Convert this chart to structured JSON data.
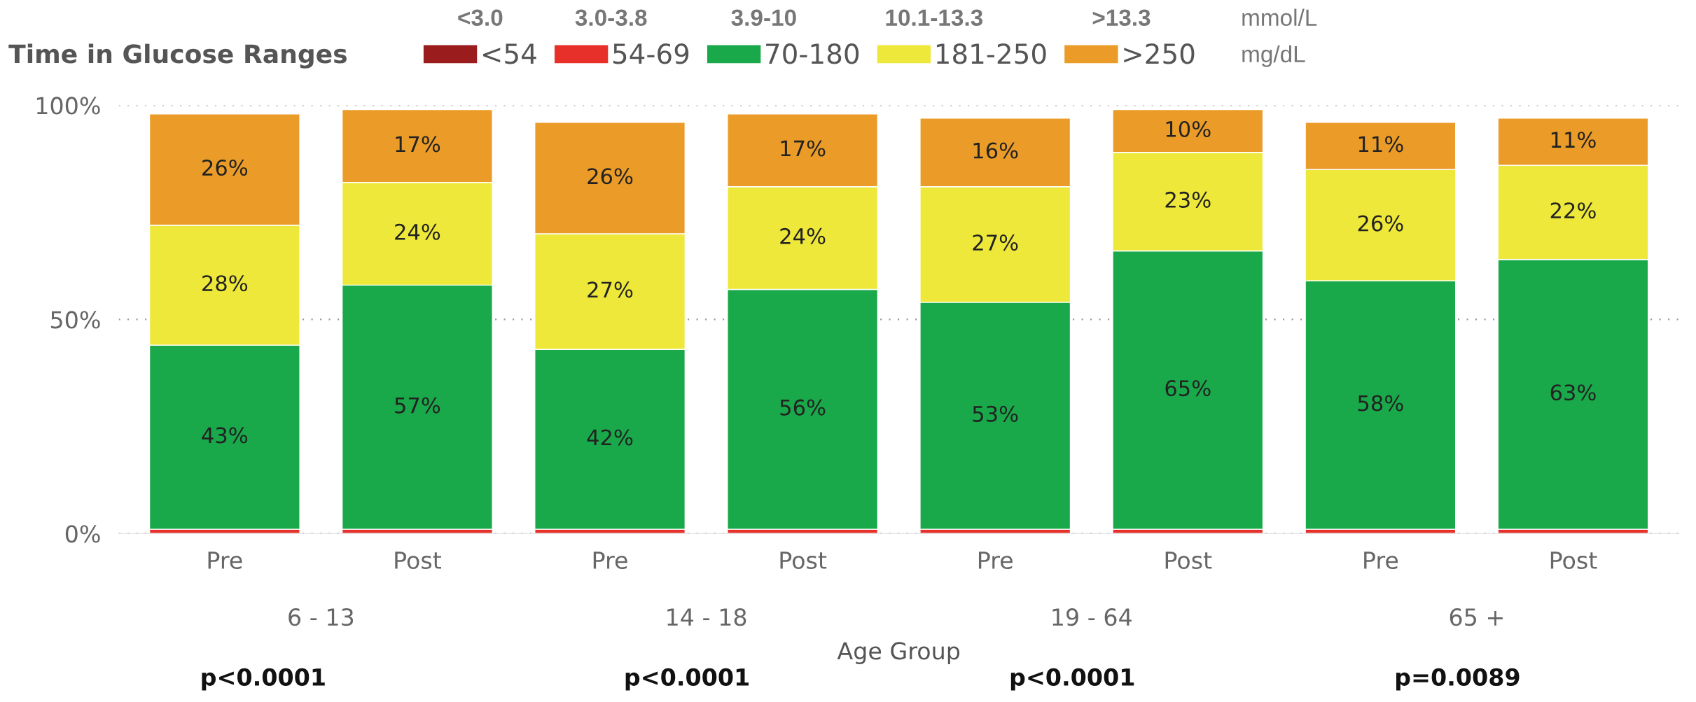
{
  "chart_data": {
    "type": "bar",
    "stacked": true,
    "legend_title": "Time in Glucose Ranges",
    "xlabel": "Age Group",
    "categories": [
      "Pre",
      "Post",
      "Pre",
      "Post",
      "Pre",
      "Post",
      "Pre",
      "Post"
    ],
    "series": [
      {
        "name": "<54",
        "color": "#9b1c1c",
        "values": [
          0,
          0,
          0,
          0,
          0,
          0,
          0,
          0
        ],
        "value_labels": [
          null,
          null,
          null,
          null,
          null,
          null,
          null,
          null
        ]
      },
      {
        "name": "54-69",
        "color": "#e8302a",
        "values": [
          1,
          1,
          1,
          1,
          1,
          1,
          1,
          1
        ],
        "value_labels": [
          null,
          null,
          null,
          null,
          null,
          null,
          null,
          null
        ]
      },
      {
        "name": "70-180",
        "color": "#19a94a",
        "values": [
          43,
          57,
          42,
          56,
          53,
          65,
          58,
          63
        ],
        "value_labels": [
          "43%",
          "57%",
          "42%",
          "56%",
          "53%",
          "65%",
          "58%",
          "63%"
        ]
      },
      {
        "name": "181-250",
        "color": "#eee83a",
        "values": [
          28,
          24,
          27,
          24,
          27,
          23,
          26,
          22
        ],
        "value_labels": [
          "28%",
          "24%",
          "27%",
          "24%",
          "27%",
          "23%",
          "26%",
          "22%"
        ]
      },
      {
        "name": ">250",
        "color": "#eb9c28",
        "values": [
          26,
          17,
          26,
          17,
          16,
          10,
          11,
          11
        ],
        "value_labels": [
          "26%",
          "17%",
          "26%",
          "17%",
          "16%",
          "10%",
          "11%",
          "11%"
        ]
      }
    ],
    "ylim": [
      0,
      100
    ],
    "yticks": [
      {
        "value": 0,
        "label": "0%"
      },
      {
        "value": 50,
        "label": "50%"
      },
      {
        "value": 100,
        "label": "100%"
      }
    ],
    "grid": "y",
    "legend": "top left",
    "annotations": [
      "6 - 13",
      "14 - 18",
      "19 - 64",
      "65 +",
      "p<0.0001",
      "p<0.0001",
      "p<0.0001",
      "p=0.0089",
      "<3.0",
      "3.0-3.8",
      "3.9-10",
      "10.1-13.3",
      ">13.3",
      "mmol/L",
      "mg/dL"
    ]
  }
}
